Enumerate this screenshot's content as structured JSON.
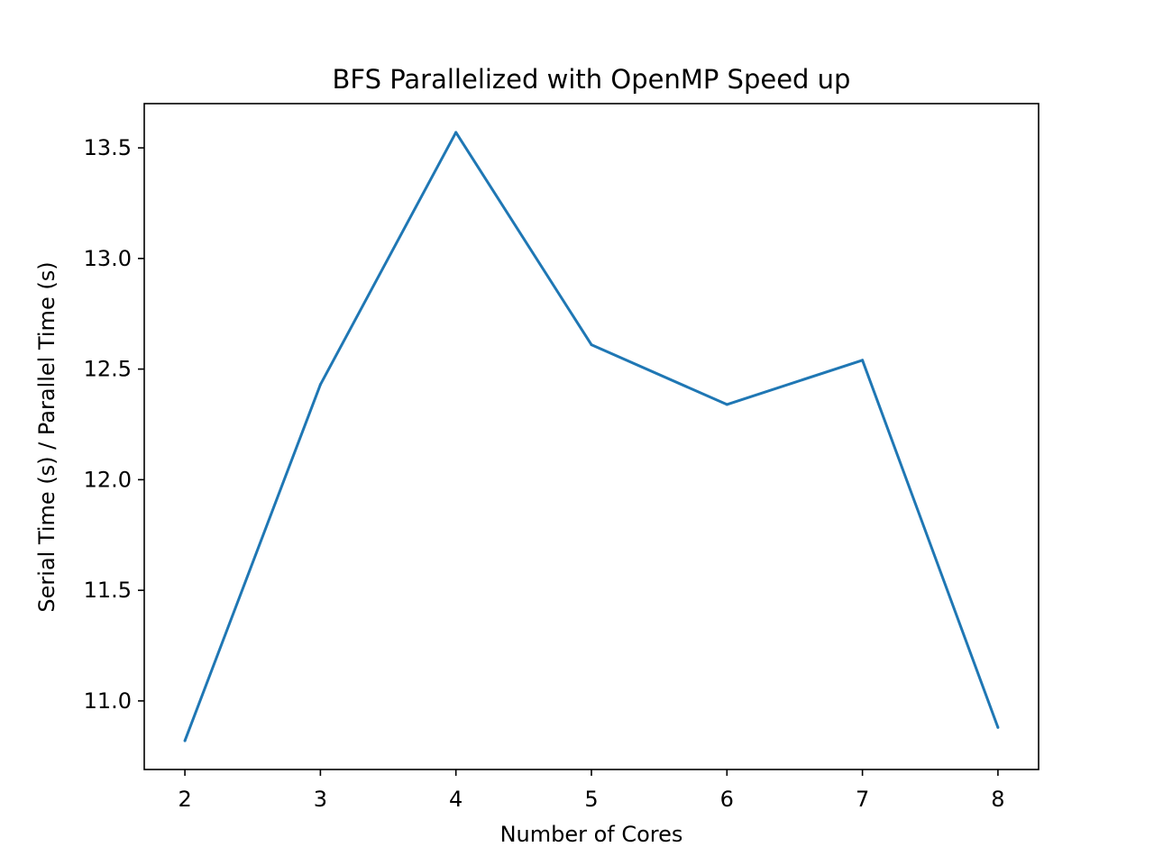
{
  "chart_data": {
    "type": "line",
    "title": "BFS Parallelized with OpenMP Speed up",
    "xlabel": "Number of Cores",
    "ylabel": "Serial Time (s) / Parallel Time (s)",
    "x": [
      2,
      3,
      4,
      5,
      6,
      7,
      8
    ],
    "series": [
      {
        "values": [
          10.82,
          12.43,
          13.57,
          12.61,
          12.34,
          12.54,
          10.88
        ],
        "color": "#1f77b4"
      }
    ],
    "xlim": [
      1.7,
      8.3
    ],
    "ylim": [
      10.69,
      13.7
    ],
    "xticks": [
      2,
      3,
      4,
      5,
      6,
      7,
      8
    ],
    "xtick_labels": [
      "2",
      "3",
      "4",
      "5",
      "6",
      "7",
      "8"
    ],
    "yticks": [
      11.0,
      11.5,
      12.0,
      12.5,
      13.0,
      13.5
    ],
    "ytick_labels": [
      "11.0",
      "11.5",
      "12.0",
      "12.5",
      "13.0",
      "13.5"
    ],
    "grid": false,
    "legend": "none"
  }
}
